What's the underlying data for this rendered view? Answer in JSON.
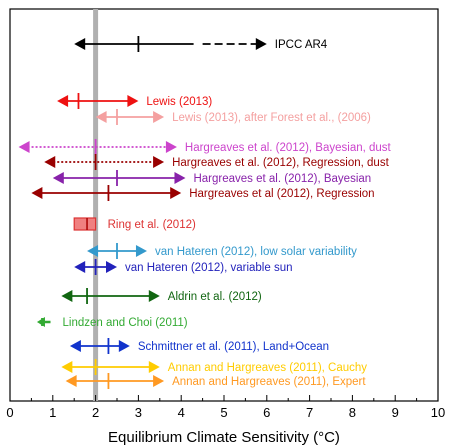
{
  "chart_data": {
    "type": "range",
    "xlabel": "Equilibrium Climate Sensitivity (°C)",
    "xlim": [
      0,
      10
    ],
    "xticks": [
      0,
      1,
      2,
      3,
      4,
      5,
      6,
      7,
      8,
      9,
      10
    ],
    "reference_line": {
      "x": 2.0,
      "color": "#b0b0b0"
    },
    "estimates": [
      {
        "label": "IPCC AR4",
        "color": "#000000",
        "low": 1.5,
        "best": 3.0,
        "high": 4.5,
        "dashed_to": 6.0,
        "style": "solid"
      },
      {
        "label": "Lewis (2013)",
        "color": "#ee1111",
        "low": 1.1,
        "best": 1.6,
        "high": 3.0,
        "style": "solid"
      },
      {
        "label": "Lewis (2013), after Forest et al., (2006)",
        "color": "#f4a0a0",
        "low": 2.0,
        "best": 2.5,
        "high": 3.6,
        "style": "solid"
      },
      {
        "label": "Hargreaves et al. (2012), Bayesian, dust",
        "color": "#cc44cc",
        "low": 0.2,
        "best": 2.0,
        "high": 3.9,
        "style": "dotted"
      },
      {
        "label": "Hargreaves et al. (2012), Regression, dust",
        "color": "#990000",
        "low": 0.8,
        "best": 2.0,
        "high": 3.6,
        "style": "dotted"
      },
      {
        "label": "Hargreaves et al. (2012), Bayesian",
        "color": "#8822aa",
        "low": 1.0,
        "best": 2.5,
        "high": 4.1,
        "style": "solid"
      },
      {
        "label": "Hargreaves et al (2012), Regression",
        "color": "#990000",
        "low": 0.5,
        "best": 2.3,
        "high": 4.0,
        "style": "solid"
      },
      {
        "label": "Ring et al. (2012)",
        "color": "#dd3333",
        "low": 1.5,
        "best": 1.8,
        "high": 2.0,
        "style": "box"
      },
      {
        "label": "van Hateren (2012), low solar variability",
        "color": "#3399cc",
        "low": 1.8,
        "best": 2.5,
        "high": 3.2,
        "style": "solid"
      },
      {
        "label": "van Hateren (2012), variable sun",
        "color": "#2222bb",
        "low": 1.5,
        "best": 2.0,
        "high": 2.5,
        "style": "solid"
      },
      {
        "label": "Aldrin et al. (2012)",
        "color": "#116611",
        "low": 1.2,
        "best": 1.8,
        "high": 3.5,
        "style": "solid"
      },
      {
        "label": "Lindzen and Choi  (2011)",
        "color": "#33aa33",
        "low": 0.7,
        "best": 0.75,
        "high": 0.9,
        "style": "solid"
      },
      {
        "label": "Schmittner et al.  (2011), Land+Ocean",
        "color": "#1133cc",
        "low": 1.4,
        "best": 2.3,
        "high": 2.8,
        "style": "solid"
      },
      {
        "label": "Annan and Hargreaves (2011), Cauchy",
        "color": "#ffcc00",
        "low": 1.2,
        "best": 2.0,
        "high": 3.5,
        "style": "solid"
      },
      {
        "label": "Annan and Hargreaves (2011), Expert",
        "color": "#ff9922",
        "low": 1.3,
        "best": 2.3,
        "high": 3.6,
        "style": "solid"
      }
    ]
  }
}
